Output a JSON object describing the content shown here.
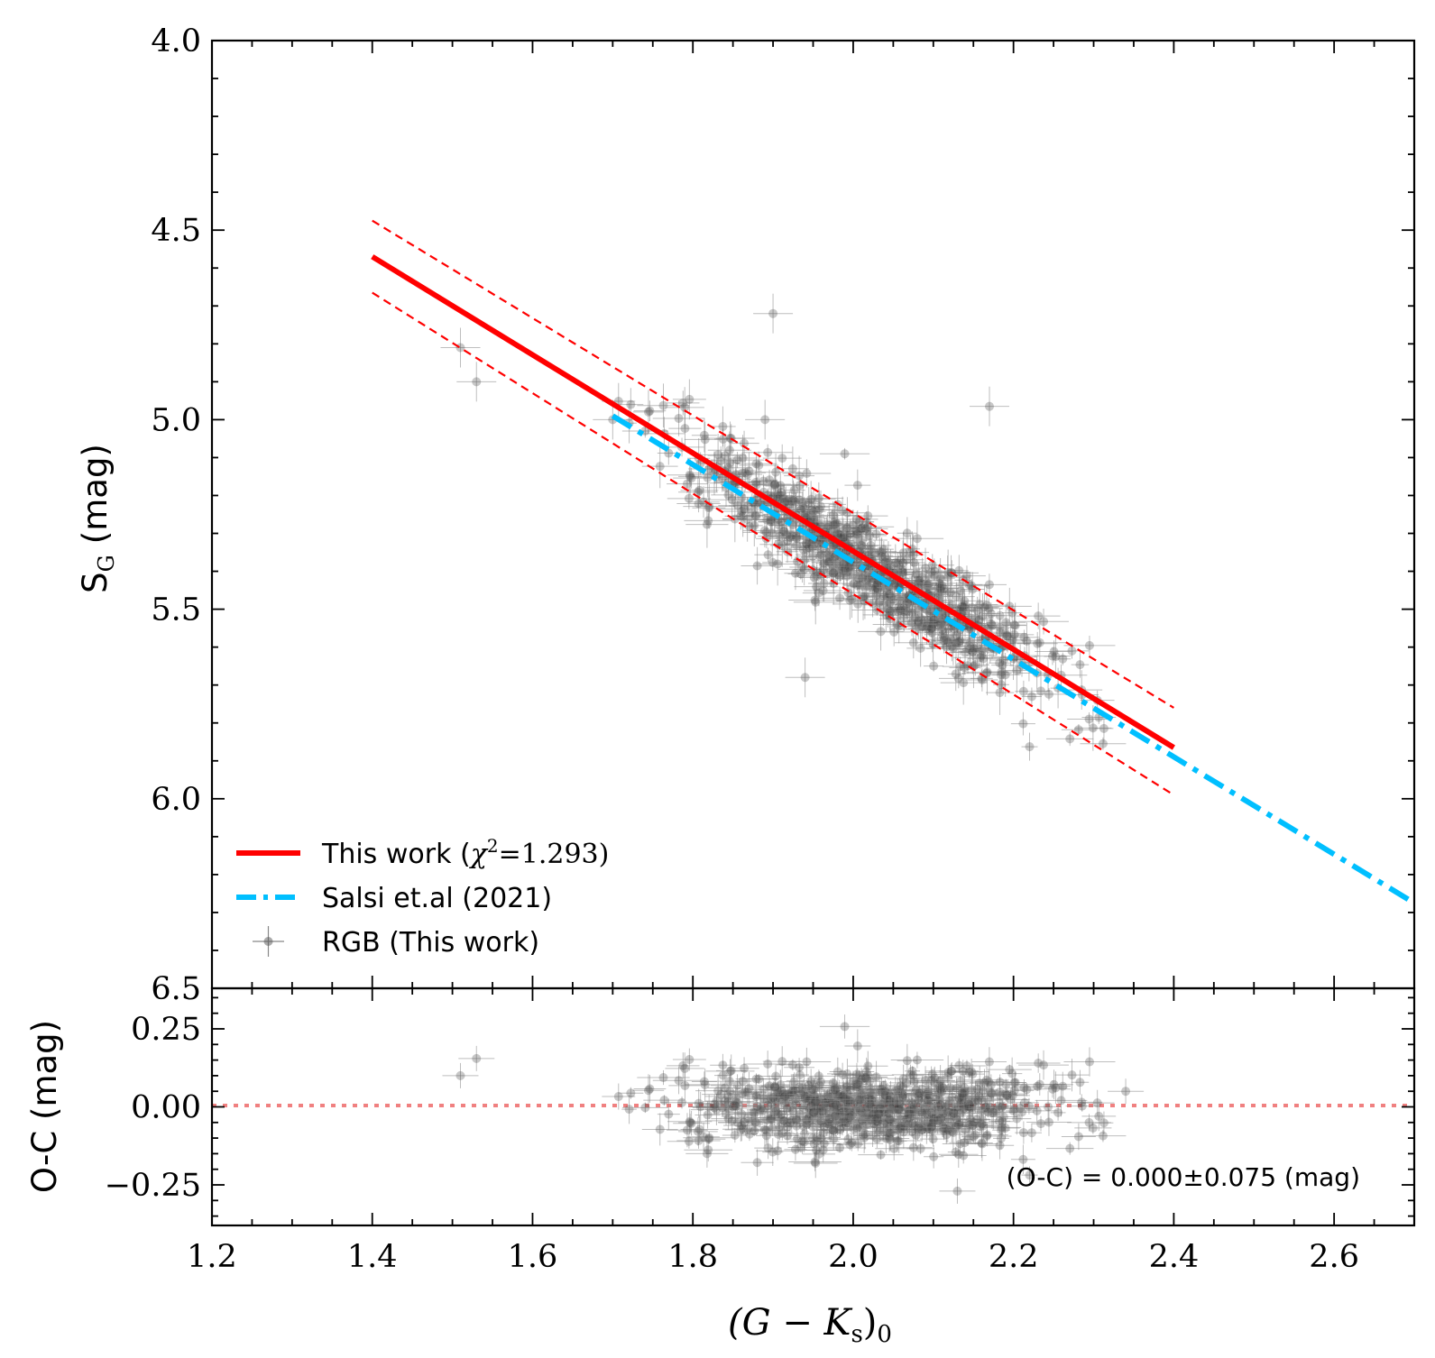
{
  "chart_data": [
    {
      "panel": "main",
      "type": "scatter",
      "ylabel": "S",
      "ylabel_sub": "G",
      "ylabel_unit": "(mag)",
      "xlim": [
        1.2,
        2.7
      ],
      "ylim": [
        4.0,
        6.5
      ],
      "y_inverted": true,
      "yticks": [
        "4.0",
        "4.5",
        "5.0",
        "5.5",
        "6.0",
        "6.5"
      ],
      "series": [
        {
          "name": "This work",
          "chi2_label": "χ",
          "chi2_exp": "2",
          "chi2_value": "=1.293)",
          "label_prefix": "This work (",
          "style": "solid",
          "color": "#ff0000",
          "x": [
            1.4,
            2.4
          ],
          "y": [
            4.57,
            5.865
          ]
        },
        {
          "name": "This work upper bound",
          "style": "dashed",
          "color": "#ff0000",
          "x": [
            1.4,
            2.4
          ],
          "y": [
            4.475,
            5.76
          ]
        },
        {
          "name": "This work lower bound",
          "style": "dashed",
          "color": "#ff0000",
          "x": [
            1.4,
            2.4
          ],
          "y": [
            4.665,
            5.99
          ]
        },
        {
          "name": "Salsi et.al (2021)",
          "style": "dashdot",
          "color": "#00bfff",
          "x": [
            1.7,
            2.7
          ],
          "y": [
            4.99,
            6.275
          ]
        },
        {
          "name": "RGB (This work)",
          "style": "points",
          "color": "#555555",
          "n_points": 760,
          "outliers": [
            [
              1.51,
              4.81
            ],
            [
              1.53,
              4.9
            ],
            [
              1.9,
              4.72
            ],
            [
              2.17,
              4.965
            ],
            [
              1.94,
              5.68
            ],
            [
              1.89,
              5.0
            ],
            [
              1.7,
              5.0
            ]
          ],
          "cloud": {
            "x_range": [
              1.68,
              2.34
            ],
            "relation": "y = 1.286*x + 2.789",
            "scatter_sigma": 0.075
          }
        }
      ],
      "legend": {
        "placement": "lower-left",
        "entries": [
          "This work (χ²=1.293)",
          "Salsi et.al (2021)",
          "RGB (This work)"
        ]
      }
    },
    {
      "panel": "residuals",
      "type": "scatter",
      "xlabel": "(G − K",
      "xlabel_sub": "s",
      "xlabel_tail": ")",
      "xlabel_sub2": "0",
      "ylabel": "O-C (mag)",
      "xlim": [
        1.2,
        2.7
      ],
      "ylim": [
        -0.38,
        0.38
      ],
      "xticks": [
        "1.2",
        "1.4",
        "1.6",
        "1.8",
        "2.0",
        "2.2",
        "2.4",
        "2.6"
      ],
      "yticks": [
        "0.25",
        "0.00",
        "−0.25"
      ],
      "zero_line_color": "#f08080",
      "annotation": "(O-C) = 0.000±0.075 (mag)",
      "outliers": [
        [
          1.51,
          0.1
        ],
        [
          1.53,
          0.155
        ],
        [
          2.34,
          0.05
        ],
        [
          2.13,
          -0.27
        ]
      ]
    }
  ]
}
